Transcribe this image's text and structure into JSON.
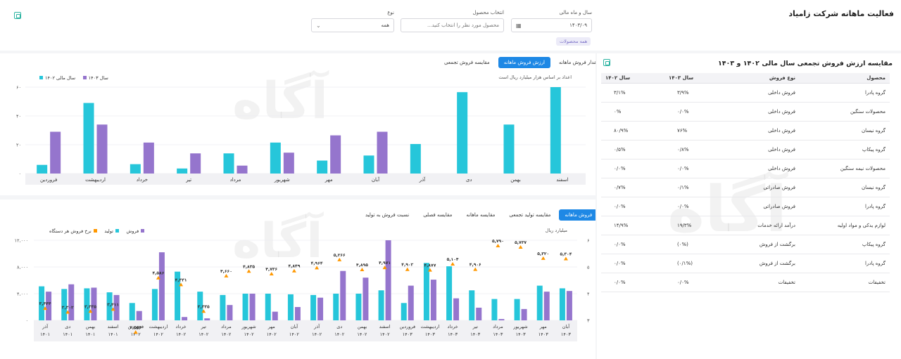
{
  "header": {
    "title": "فعالیت ماهانه شرکت زامیاد",
    "filters": {
      "date_label": "سال و ماه مالی",
      "date_value": "۱۴۰۳/۰۹",
      "product_label": "انتخاب محصول",
      "product_placeholder": "محصول مورد نظر را انتخاب کنید...",
      "type_label": "نوع",
      "type_value": "همه"
    },
    "tag": "همه محصولات"
  },
  "comparison": {
    "title": "مقایسه ارزش فروش تجمعی سال مالی ۱۴۰۲ و ۱۴۰۳",
    "columns": [
      "محصول",
      "نوع فروش",
      "سال ۱۴۰۳",
      "سال ۱۴۰۲"
    ],
    "rows": [
      [
        "گروه پادرا",
        "فروش داخلی",
        "۳/۹%",
        "۳/۱%"
      ],
      [
        "محصولات سنگین",
        "فروش داخلی",
        "۰/۰%",
        "۰%"
      ],
      [
        "گروه نیسان",
        "فروش داخلی",
        "۷۶%",
        "۸۰/۹%"
      ],
      [
        "گروه پیکاپ",
        "فروش داخلی",
        "۰/۸%",
        "۰/۵%"
      ],
      [
        "محصولات نیمه سنگین",
        "فروش داخلی",
        "۰/۰%",
        "۰/۰%"
      ],
      [
        "گروه نیسان",
        "فروش صادراتی",
        "۰/۱%",
        "۰/۷%"
      ],
      [
        "گروه پادرا",
        "فروش صادراتی",
        "۰/۰%",
        "۰/۰%"
      ],
      [
        "لوازم یدکی و مواد اولیه",
        "درآمد ارائه خدمات",
        "۱۹/۳%",
        "۱۴/۹%"
      ],
      [
        "گروه پیکاپ",
        "برگشت از فروش",
        "(۰%)",
        "۰/۰%"
      ],
      [
        "گروه پادرا",
        "برگشت از فروش",
        "(۰/۱%)",
        "۰/۰%"
      ],
      [
        "تخفیفات",
        "تخفیفات",
        "۰/۰%",
        "۰/۰%"
      ]
    ]
  },
  "top_chart": {
    "tabs": [
      "مقدار فروش ماهانه",
      "ارزش فروش ماهانه",
      "مقایسه فروش تجمعی"
    ],
    "active_tab": 1,
    "note": "اعداد بر اساس هزار میلیارد ریال است",
    "legend": [
      {
        "name": "سال ۱۴۰۳",
        "color": "#9575cd"
      },
      {
        "name": "سال مالی ۱۴۰۲",
        "color": "#26c6da"
      }
    ]
  },
  "bottom_chart": {
    "tabs": [
      "فروش ماهانه",
      "مقایسه تولید تجمعی",
      "مقایسه ماهانه",
      "مقایسه فصلی",
      "نسبت فروش به تولید"
    ],
    "active_tab": 0,
    "unit_label": "میلیارد ریال",
    "legend": [
      {
        "name": "فروش",
        "color": "#9575cd"
      },
      {
        "name": "تولید",
        "color": "#26c6da"
      },
      {
        "name": "نرخ فروش هر دستگاه",
        "color": "#ff9800"
      }
    ]
  },
  "chart_data": [
    {
      "type": "bar",
      "ylim": [
        0,
        60
      ],
      "y_ticks": [
        "۰",
        "۲۰",
        "۴۰",
        "۶۰"
      ],
      "categories": [
        "فروردین",
        "اردیبهشت",
        "خرداد",
        "تیر",
        "مرداد",
        "شهریور",
        "مهر",
        "آبان",
        "آذر",
        "دی",
        "بهمن",
        "اسفند"
      ],
      "series": [
        {
          "name": "سال ۱۴۰۳",
          "color": "#9575cd",
          "values": [
            29,
            34,
            21.5,
            14,
            5.5,
            14.5,
            26.5,
            29,
            null,
            null,
            null,
            null
          ]
        },
        {
          "name": "سال مالی ۱۴۰۲",
          "color": "#26c6da",
          "values": [
            6,
            49,
            6.5,
            3.5,
            14,
            21.5,
            9,
            12.5,
            20.5,
            56.5,
            34,
            66
          ]
        }
      ]
    },
    {
      "type": "bar",
      "ylim": [
        0,
        12000
      ],
      "y_ticks": [
        "۰",
        "۴,۰۰۰",
        "۸,۰۰۰",
        "۱۲,۰۰۰"
      ],
      "y2_ticks": [
        "۳",
        "۴",
        "۵",
        "۶"
      ],
      "y2lim": [
        3,
        6
      ],
      "categories": [
        "آذر ۱۴۰۱",
        "دی ۱۴۰۱",
        "بهمن ۱۴۰۱",
        "اسفند ۱۴۰۱",
        "فروردین ۱۴۰۲",
        "اردیبهشت ۱۴۰۲",
        "خرداد ۱۴۰۲",
        "تیر ۱۴۰۲",
        "مرداد ۱۴۰۲",
        "شهریور ۱۴۰۲",
        "مهر ۱۴۰۲",
        "آبان ۱۴۰۲",
        "آذر ۱۴۰۲",
        "دی ۱۴۰۲",
        "بهمن ۱۴۰۲",
        "اسفند ۱۴۰۲",
        "فروردین ۱۴۰۳",
        "اردیبهشت ۱۴۰۳",
        "خرداد ۱۴۰۳",
        "تیر ۱۴۰۳",
        "مرداد ۱۴۰۳",
        "شهریور ۱۴۰۳",
        "مهر ۱۴۰۳",
        "آبان ۱۴۰۳"
      ],
      "series": [
        {
          "name": "تولید",
          "color": "#26c6da",
          "values": [
            5100,
            4700,
            4800,
            4200,
            2600,
            4700,
            7300,
            4300,
            3800,
            4000,
            4000,
            3900,
            3800,
            4000,
            4000,
            4500,
            2600,
            8600,
            8100,
            4500,
            3200,
            3200,
            5200,
            4800
          ]
        },
        {
          "name": "فروش",
          "color": "#9575cd",
          "values": [
            4300,
            5400,
            4900,
            3800,
            1400,
            10200,
            500,
            300,
            2300,
            4000,
            1300,
            2000,
            3400,
            7400,
            6400,
            12000,
            5200,
            6100,
            3300,
            1900,
            200,
            1700,
            4300,
            4400
          ]
        },
        {
          "name": "نرخ فروش هر دستگاه",
          "color": "#ff9800",
          "values": [
            3.444,
            3.302,
            3.335,
            3.411,
            2.554,
            4.586,
            4.331,
            3.335,
            4.66,
            4.835,
            4.736,
            4.849,
            4.964,
            5.266,
            4.895,
            4.971,
            4.902,
            4.877,
            5.104,
            4.906,
            5.79,
            5.737,
            5.32,
            5.304
          ]
        }
      ],
      "value_labels": [
        "۳,۴۴۴",
        "۳,۳۰۲",
        "۳,۳۳۵",
        "۳,۴۱۱",
        "۲,۵۵۴",
        "۴,۵۸۶",
        "۴,۳۳۱",
        "۳,۳۳۵",
        "۴,۶۶۰",
        "۴,۸۳۵",
        "۴,۷۳۶",
        "۴,۸۴۹",
        "۴,۹۶۴",
        "۵,۲۶۶",
        "۴,۸۹۵",
        "۴,۹۷۱",
        "۴,۹۰۲",
        "۴,۸۷۷",
        "۵,۱۰۴",
        "۴,۹۰۶",
        "۵,۷۹۰",
        "۵,۷۳۷",
        "۵,۳۲۰",
        "۵,۳۰۴"
      ]
    }
  ],
  "watermark": "آگاه"
}
